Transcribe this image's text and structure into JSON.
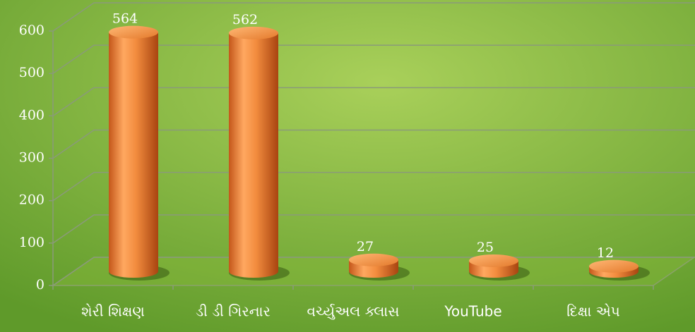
{
  "chart_data": {
    "type": "bar3d",
    "categories": [
      "શેરી શિક્ષણ",
      "ડી ડી ગિરનાર",
      "વર્ચ્યુઅલ ક્લાસ",
      "YouTube",
      "દિક્ષા એપ"
    ],
    "values": [
      564,
      562,
      27,
      25,
      12
    ],
    "color": "#f08a3a",
    "ylim": [
      0,
      600
    ],
    "yticks": [
      0,
      100,
      200,
      300,
      400,
      500,
      600
    ],
    "grid": true
  }
}
